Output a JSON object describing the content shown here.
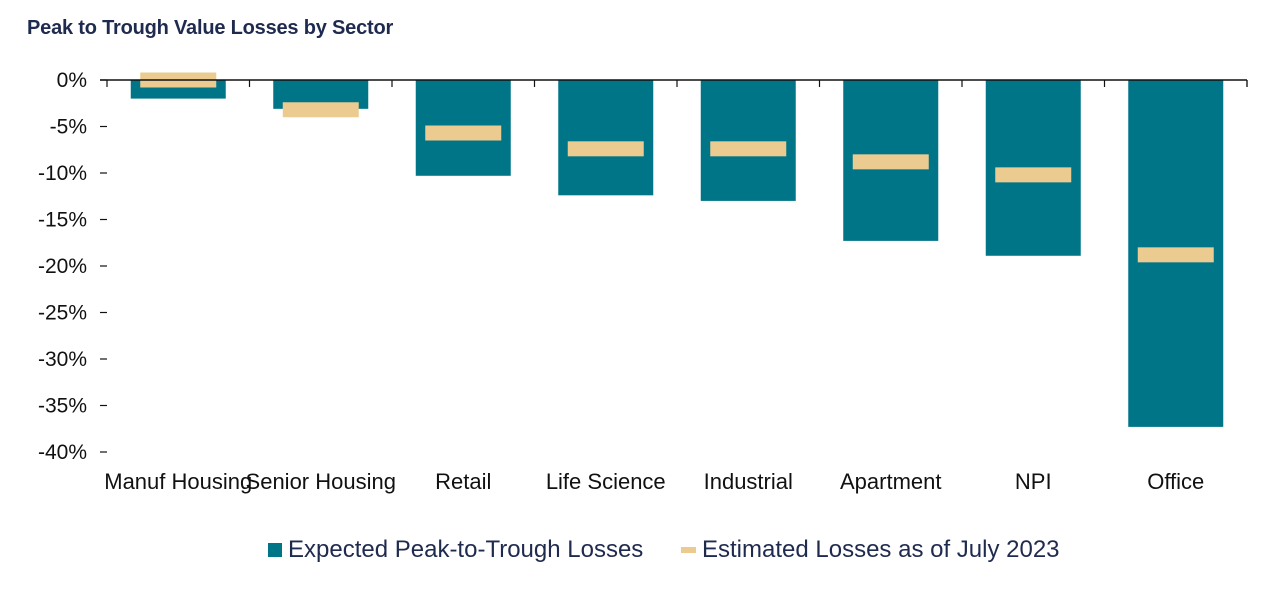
{
  "chart_data": {
    "type": "bar",
    "title": "Peak to Trough Value Losses by Sector",
    "categories": [
      "Manuf Housing",
      "Senior Housing",
      "Retail",
      "Life Science",
      "Industrial",
      "Apartment",
      "NPI",
      "Office"
    ],
    "series": [
      {
        "name": "Expected Peak-to-Trough Losses",
        "type": "bar",
        "color": "#007587",
        "values": [
          -2.0,
          -3.1,
          -10.3,
          -12.4,
          -13.0,
          -17.3,
          -18.9,
          -37.3
        ]
      },
      {
        "name": "Estimated Losses as of July 2023",
        "type": "marker",
        "color": "#ebcb8f",
        "values": [
          0.0,
          -3.2,
          -5.7,
          -7.4,
          -7.4,
          -8.8,
          -10.2,
          -18.8
        ]
      }
    ],
    "ylim": [
      -40,
      0
    ],
    "yticks": [
      0,
      -5,
      -10,
      -15,
      -20,
      -25,
      -30,
      -35,
      -40
    ],
    "ytick_labels": [
      "0%",
      "-5%",
      "-10%",
      "-15%",
      "-20%",
      "-25%",
      "-30%",
      "-35%",
      "-40%"
    ],
    "xlabel": "",
    "ylabel": "",
    "grid": false,
    "legend_position": "bottom"
  }
}
